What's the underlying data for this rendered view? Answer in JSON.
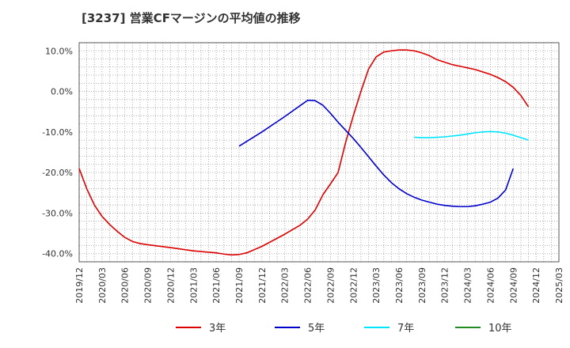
{
  "chart_data": {
    "type": "line",
    "title": "[3237]  営業CFマージンの平均値の推移",
    "xlabel": "",
    "ylabel": "",
    "ylim": [
      -42,
      12
    ],
    "y_ticks": [
      10,
      0,
      -10,
      -20,
      -30,
      -40
    ],
    "y_tick_labels": [
      "10.0%",
      "0.0%",
      "-10.0%",
      "-20.0%",
      "-30.0%",
      "-40.0%"
    ],
    "x_ticks": [
      "2019/12",
      "2020/03",
      "2020/06",
      "2020/09",
      "2020/12",
      "2021/03",
      "2021/06",
      "2021/09",
      "2021/12",
      "2022/03",
      "2022/06",
      "2022/09",
      "2022/12",
      "2023/03",
      "2023/06",
      "2023/09",
      "2023/12",
      "2024/03",
      "2024/06",
      "2024/09",
      "2024/12",
      "2025/03"
    ],
    "grid": true,
    "legend_position": "bottom",
    "series": [
      {
        "name": "3年",
        "color": "#dd0000",
        "points": [
          [
            "2019/12",
            -19.0
          ],
          [
            "2020/01",
            -24.0
          ],
          [
            "2020/02",
            -28.0
          ],
          [
            "2020/03",
            -30.8
          ],
          [
            "2020/04",
            -32.8
          ],
          [
            "2020/05",
            -34.5
          ],
          [
            "2020/06",
            -36.0
          ],
          [
            "2020/07",
            -37.0
          ],
          [
            "2020/08",
            -37.5
          ],
          [
            "2020/09",
            -37.8
          ],
          [
            "2020/12",
            -38.5
          ],
          [
            "2021/03",
            -39.3
          ],
          [
            "2021/06",
            -39.8
          ],
          [
            "2021/07",
            -40.1
          ],
          [
            "2021/08",
            -40.3
          ],
          [
            "2021/09",
            -40.2
          ],
          [
            "2021/10",
            -39.8
          ],
          [
            "2021/11",
            -39.0
          ],
          [
            "2021/12",
            -38.2
          ],
          [
            "2022/01",
            -37.2
          ],
          [
            "2022/02",
            -36.2
          ],
          [
            "2022/03",
            -35.2
          ],
          [
            "2022/04",
            -34.1
          ],
          [
            "2022/05",
            -33.0
          ],
          [
            "2022/06",
            -31.5
          ],
          [
            "2022/07",
            -29.2
          ],
          [
            "2022/08",
            -25.5
          ],
          [
            "2022/09",
            -22.8
          ],
          [
            "2022/10",
            -20.0
          ],
          [
            "2022/11",
            -12.5
          ],
          [
            "2022/12",
            -6.0
          ],
          [
            "2023/01",
            0.0
          ],
          [
            "2023/02",
            5.5
          ],
          [
            "2023/03",
            8.5
          ],
          [
            "2023/04",
            9.7
          ],
          [
            "2023/05",
            10.0
          ],
          [
            "2023/06",
            10.2
          ],
          [
            "2023/07",
            10.2
          ],
          [
            "2023/08",
            10.0
          ],
          [
            "2023/09",
            9.5
          ],
          [
            "2023/10",
            8.8
          ],
          [
            "2023/11",
            7.8
          ],
          [
            "2023/12",
            7.2
          ],
          [
            "2024/01",
            6.6
          ],
          [
            "2024/02",
            6.2
          ],
          [
            "2024/03",
            5.8
          ],
          [
            "2024/04",
            5.4
          ],
          [
            "2024/05",
            4.8
          ],
          [
            "2024/06",
            4.2
          ],
          [
            "2024/07",
            3.4
          ],
          [
            "2024/08",
            2.4
          ],
          [
            "2024/09",
            1.0
          ],
          [
            "2024/10",
            -1.0
          ],
          [
            "2024/11",
            -3.8
          ]
        ]
      },
      {
        "name": "5年",
        "color": "#0000cc",
        "points": [
          [
            "2021/09",
            -13.5
          ],
          [
            "2021/12",
            -10.0
          ],
          [
            "2022/03",
            -6.2
          ],
          [
            "2022/06",
            -2.2
          ],
          [
            "2022/07",
            -2.3
          ],
          [
            "2022/08",
            -3.4
          ],
          [
            "2022/09",
            -5.4
          ],
          [
            "2022/10",
            -7.6
          ],
          [
            "2022/11",
            -9.6
          ],
          [
            "2022/12",
            -11.6
          ],
          [
            "2023/01",
            -13.8
          ],
          [
            "2023/02",
            -16.1
          ],
          [
            "2023/03",
            -18.4
          ],
          [
            "2023/04",
            -20.6
          ],
          [
            "2023/05",
            -22.5
          ],
          [
            "2023/06",
            -24.0
          ],
          [
            "2023/07",
            -25.2
          ],
          [
            "2023/08",
            -26.1
          ],
          [
            "2023/09",
            -26.8
          ],
          [
            "2023/10",
            -27.3
          ],
          [
            "2023/11",
            -27.8
          ],
          [
            "2023/12",
            -28.1
          ],
          [
            "2024/01",
            -28.3
          ],
          [
            "2024/02",
            -28.4
          ],
          [
            "2024/03",
            -28.4
          ],
          [
            "2024/04",
            -28.2
          ],
          [
            "2024/05",
            -27.8
          ],
          [
            "2024/06",
            -27.3
          ],
          [
            "2024/07",
            -26.3
          ],
          [
            "2024/08",
            -24.3
          ],
          [
            "2024/09",
            -19.0
          ]
        ]
      },
      {
        "name": "7年",
        "color": "#00e5ff",
        "points": [
          [
            "2023/08",
            -11.3
          ],
          [
            "2023/09",
            -11.4
          ],
          [
            "2023/10",
            -11.4
          ],
          [
            "2023/11",
            -11.3
          ],
          [
            "2023/12",
            -11.2
          ],
          [
            "2024/01",
            -11.0
          ],
          [
            "2024/02",
            -10.8
          ],
          [
            "2024/03",
            -10.5
          ],
          [
            "2024/04",
            -10.2
          ],
          [
            "2024/05",
            -10.0
          ],
          [
            "2024/06",
            -9.9
          ],
          [
            "2024/07",
            -10.0
          ],
          [
            "2024/08",
            -10.3
          ],
          [
            "2024/09",
            -10.8
          ],
          [
            "2024/10",
            -11.4
          ],
          [
            "2024/11",
            -12.0
          ]
        ]
      },
      {
        "name": "10年",
        "color": "#228b22",
        "points": []
      }
    ]
  }
}
